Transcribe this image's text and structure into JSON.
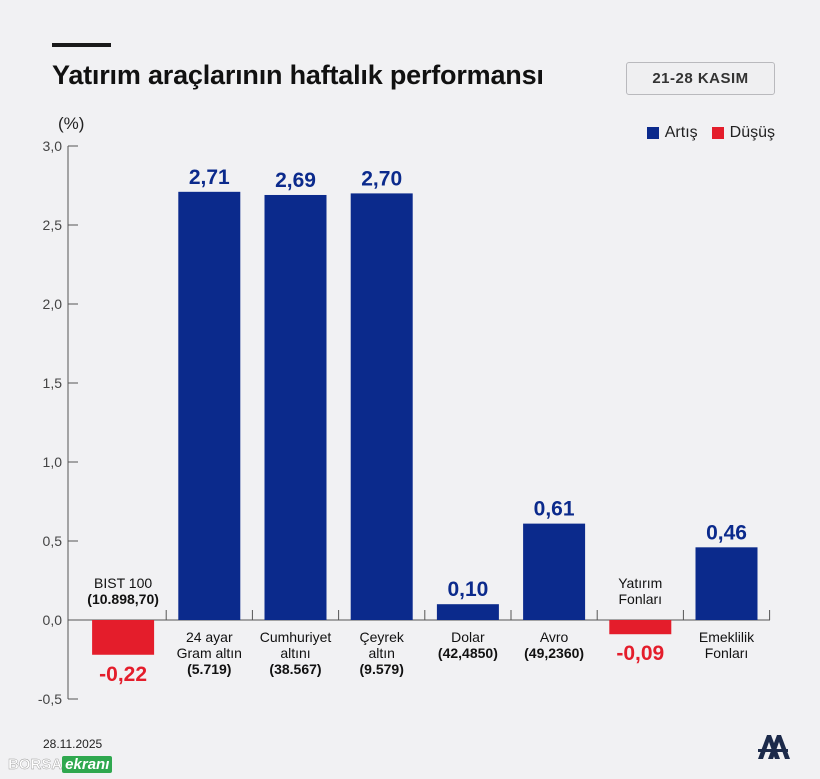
{
  "header": {
    "title": "Yatırım araçlarının haftalık performansı",
    "date_range": "21-28 KASIM",
    "unit": "(%)"
  },
  "legend": {
    "increase_label": "Artış",
    "decrease_label": "Düşüş"
  },
  "colors": {
    "increase": "#0b2a8c",
    "decrease": "#e41d2b",
    "axis": "#555555"
  },
  "chart_data": {
    "type": "bar",
    "title": "Yatırım araçlarının haftalık performansı",
    "ylabel": "(%)",
    "ylim": [
      -0.5,
      3.0
    ],
    "yticks": [
      "3,0",
      "2,5",
      "2,0",
      "1,5",
      "1,0",
      "0,5",
      "0,0",
      "-0,5"
    ],
    "ytick_values": [
      3.0,
      2.5,
      2.0,
      1.5,
      1.0,
      0.5,
      0.0,
      -0.5
    ],
    "grid": false,
    "legend_position": "top-right",
    "categories": [
      {
        "lines": [
          "BIST 100",
          "(10.898,70)"
        ],
        "value": -0.22,
        "value_label": "-0,22"
      },
      {
        "lines": [
          "24 ayar",
          "Gram altın",
          "(5.719)"
        ],
        "value": 2.71,
        "value_label": "2,71"
      },
      {
        "lines": [
          "Cumhuriyet",
          "altını",
          "(38.567)"
        ],
        "value": 2.69,
        "value_label": "2,69"
      },
      {
        "lines": [
          "Çeyrek",
          "altın",
          "(9.579)"
        ],
        "value": 2.7,
        "value_label": "2,70"
      },
      {
        "lines": [
          "Dolar",
          "(42,4850)"
        ],
        "value": 0.1,
        "value_label": "0,10"
      },
      {
        "lines": [
          "Avro",
          "(49,2360)"
        ],
        "value": 0.61,
        "value_label": "0,61"
      },
      {
        "lines": [
          "Yatırım",
          "Fonları"
        ],
        "value": -0.09,
        "value_label": "-0,09"
      },
      {
        "lines": [
          "Emeklilik",
          "Fonları"
        ],
        "value": 0.46,
        "value_label": "0,46"
      }
    ]
  },
  "footer": {
    "date": "28.11.2025",
    "source_part1": "BORSA",
    "source_part2": "ekranı",
    "agency_logo": "aa-logo"
  }
}
